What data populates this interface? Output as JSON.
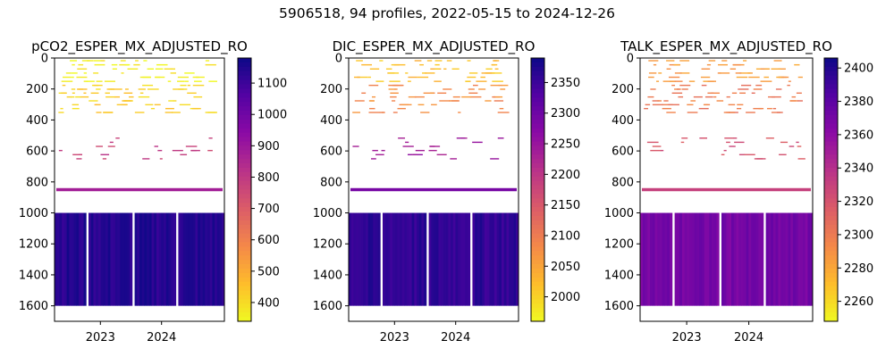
{
  "figure_title": "5906518, 94 profiles, 2022-05-15 to 2024-12-26",
  "chart_data": [
    {
      "type": "heatmap",
      "title": "pCO2_ESPER_MX_ADJUSTED_RO",
      "xlabel": "",
      "ylabel": "",
      "x_ticks": [
        "2023",
        "2024"
      ],
      "y_ticks": [
        0,
        200,
        400,
        600,
        800,
        1000,
        1200,
        1400,
        1600
      ],
      "ylim": [
        1700,
        0
      ],
      "colormap": "plasma_r",
      "colorbar": {
        "range": [
          340,
          1180
        ],
        "ticks": [
          400,
          500,
          600,
          700,
          800,
          900,
          1000,
          1100
        ]
      },
      "layers": [
        {
          "depth_range": [
            0,
            160
          ],
          "value": 360
        },
        {
          "depth_range": [
            160,
            360
          ],
          "value": 420
        },
        {
          "depth_range": [
            500,
            660
          ],
          "value": 780
        },
        {
          "depth_range": [
            840,
            860
          ],
          "value": 880
        },
        {
          "depth_range": [
            1000,
            1600
          ],
          "value": 1140
        }
      ]
    },
    {
      "type": "heatmap",
      "title": "DIC_ESPER_MX_ADJUSTED_RO",
      "xlabel": "",
      "ylabel": "",
      "x_ticks": [
        "2023",
        "2024"
      ],
      "y_ticks": [
        0,
        200,
        400,
        600,
        800,
        1000,
        1200,
        1400,
        1600
      ],
      "ylim": [
        1700,
        0
      ],
      "colormap": "plasma_r",
      "colorbar": {
        "range": [
          1960,
          2390
        ],
        "ticks": [
          2000,
          2050,
          2100,
          2150,
          2200,
          2250,
          2300,
          2350
        ]
      },
      "layers": [
        {
          "depth_range": [
            0,
            160
          ],
          "value": 2020
        },
        {
          "depth_range": [
            160,
            360
          ],
          "value": 2080
        },
        {
          "depth_range": [
            500,
            660
          ],
          "value": 2240
        },
        {
          "depth_range": [
            840,
            860
          ],
          "value": 2290
        },
        {
          "depth_range": [
            1000,
            1600
          ],
          "value": 2360
        }
      ]
    },
    {
      "type": "heatmap",
      "title": "TALK_ESPER_MX_ADJUSTED_RO",
      "xlabel": "",
      "ylabel": "",
      "x_ticks": [
        "2023",
        "2024"
      ],
      "y_ticks": [
        0,
        200,
        400,
        600,
        800,
        1000,
        1200,
        1400,
        1600
      ],
      "ylim": [
        1700,
        0
      ],
      "colormap": "plasma_r",
      "colorbar": {
        "range": [
          2248,
          2406
        ],
        "ticks": [
          2260,
          2280,
          2300,
          2320,
          2340,
          2360,
          2380,
          2400
        ]
      },
      "layers": [
        {
          "depth_range": [
            0,
            160
          ],
          "value": 2285
        },
        {
          "depth_range": [
            160,
            360
          ],
          "value": 2300
        },
        {
          "depth_range": [
            500,
            660
          ],
          "value": 2320
        },
        {
          "depth_range": [
            840,
            860
          ],
          "value": 2330
        },
        {
          "depth_range": [
            1000,
            1600
          ],
          "value": 2370
        }
      ]
    }
  ]
}
